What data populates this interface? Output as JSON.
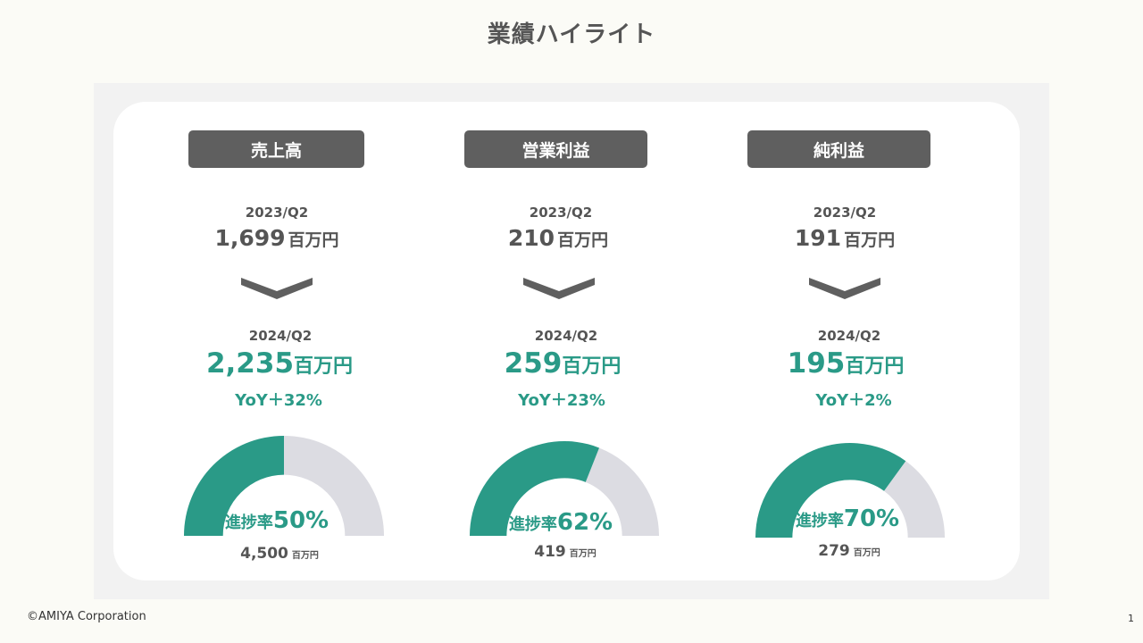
{
  "slide": {
    "title": "業績ハイライト",
    "page_number": "1",
    "copyright": "©AMIYA Corporation"
  },
  "colors": {
    "accent": "#2a9a87",
    "gauge_track": "#dcdce2",
    "tag_bg": "#5f5f5f",
    "text": "#555555"
  },
  "metrics": [
    {
      "label": "売上高",
      "prev_period": "2023/Q2",
      "prev_value": "1,699",
      "prev_unit": "百万円",
      "cur_period": "2024/Q2",
      "cur_value": "2,235",
      "cur_unit": "百万円",
      "yoy": "YoY＋32%",
      "progress_label": "進捗率",
      "progress_text": "50%",
      "progress_fraction": 0.5,
      "target_value": "4,500",
      "target_unit": "百万円",
      "chevron_icon": "chevron-down-icon"
    },
    {
      "label": "営業利益",
      "prev_period": "2023/Q2",
      "prev_value": "210",
      "prev_unit": "百万円",
      "cur_period": "2024/Q2",
      "cur_value": "259",
      "cur_unit": "百万円",
      "yoy": "YoY＋23%",
      "progress_label": "進捗率",
      "progress_text": "62%",
      "progress_fraction": 0.62,
      "target_value": "419",
      "target_unit": "百万円",
      "chevron_icon": "chevron-down-icon"
    },
    {
      "label": "純利益",
      "prev_period": "2023/Q2",
      "prev_value": "191",
      "prev_unit": "百万円",
      "cur_period": "2024/Q2",
      "cur_value": "195",
      "cur_unit": "百万円",
      "yoy": "YoY＋2%",
      "progress_label": "進捗率",
      "progress_text": "70%",
      "progress_fraction": 0.7,
      "target_value": "279",
      "target_unit": "百万円",
      "chevron_icon": "chevron-down-icon"
    }
  ]
}
